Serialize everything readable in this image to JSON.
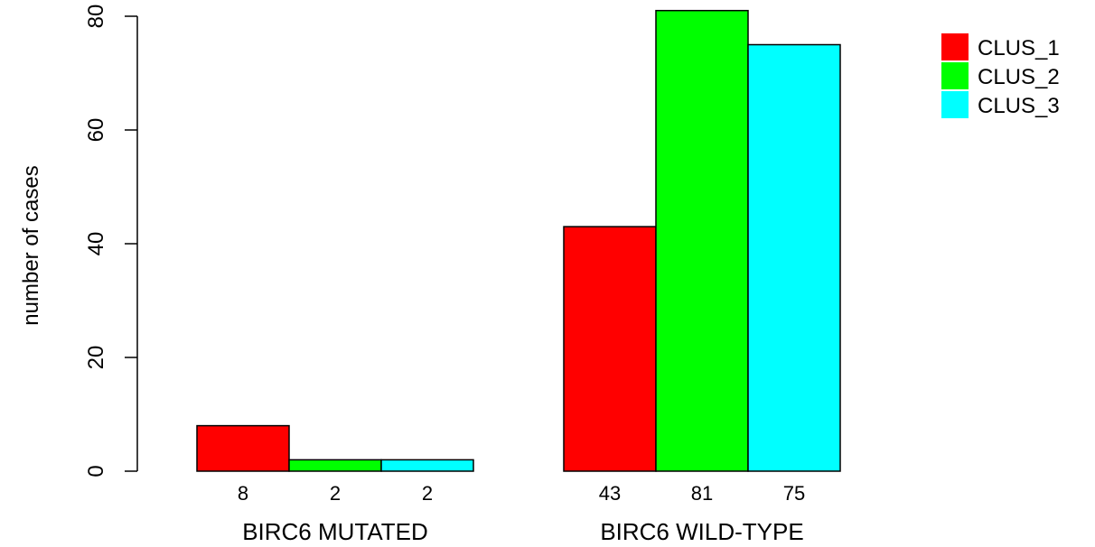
{
  "chart_data": {
    "type": "bar",
    "title": "",
    "xlabel": "",
    "ylabel": "number of cases",
    "ylim": [
      0,
      80
    ],
    "yticks": [
      0,
      20,
      40,
      60,
      80
    ],
    "grid": false,
    "legend_position": "top-right",
    "categories": [
      "BIRC6 MUTATED",
      "BIRC6 WILD-TYPE"
    ],
    "series": [
      {
        "name": "CLUS_1",
        "color": "#ff0000",
        "values": [
          8,
          43
        ]
      },
      {
        "name": "CLUS_2",
        "color": "#00ff00",
        "values": [
          2,
          81
        ]
      },
      {
        "name": "CLUS_3",
        "color": "#00ffff",
        "values": [
          2,
          75
        ]
      }
    ],
    "bar_labels": [
      [
        "8",
        "2",
        "2"
      ],
      [
        "43",
        "81",
        "75"
      ]
    ]
  }
}
